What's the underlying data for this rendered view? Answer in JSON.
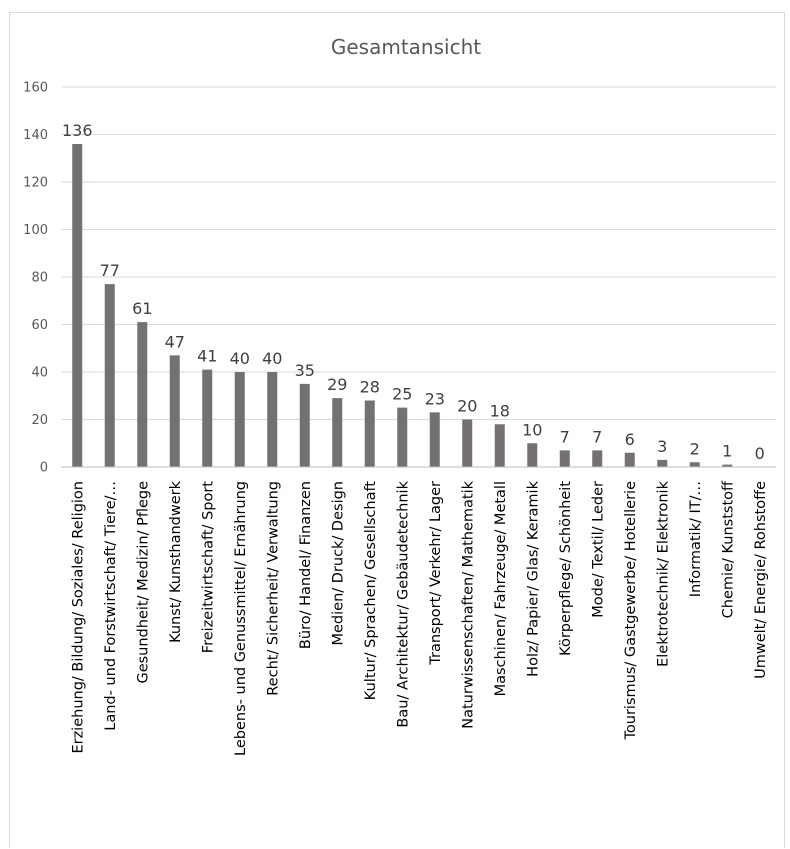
{
  "chart_data": {
    "type": "bar",
    "title": "Gesamtansicht",
    "xlabel": "",
    "ylabel": "",
    "ylim": [
      0,
      160
    ],
    "yticks": [
      0,
      20,
      40,
      60,
      80,
      100,
      120,
      140,
      160
    ],
    "grid": true,
    "legend": "none",
    "bar_color": "#767171",
    "categories": [
      "Erziehung/ Bildung/ Soziales/ Religion",
      "Land- und Forstwirtschaft/ Tiere/…",
      "Gesundheit/ Medizin/ Pflege",
      "Kunst/ Kunsthandwerk",
      "Freizeitwirtschaft/ Sport",
      "Lebens- und Genussmittel/ Ernährung",
      "Recht/ Sicherheit/ Verwaltung",
      "Büro/ Handel/ Finanzen",
      "Medien/ Druck/ Design",
      "Kultur/ Sprachen/ Gesellschaft",
      "Bau/ Architektur/ Gebäudetechnik",
      "Transport/ Verkehr/ Lager",
      "Naturwissenschaften/ Mathematik",
      "Maschinen/ Fahrzeuge/ Metall",
      "Holz/ Papier/ Glas/ Keramik",
      "Körperpflege/ Schönheit",
      "Mode/ Textil/ Leder",
      "Tourismus/ Gastgewerbe/ Hotellerie",
      "Elektrotechnik/ Elektronik",
      "Informatik/ IT/…",
      "Chemie/ Kunststoff",
      "Umwelt/ Energie/ Rohstoffe"
    ],
    "values": [
      136,
      77,
      61,
      47,
      41,
      40,
      40,
      35,
      29,
      28,
      25,
      23,
      20,
      18,
      10,
      7,
      7,
      6,
      3,
      2,
      1,
      0
    ]
  }
}
